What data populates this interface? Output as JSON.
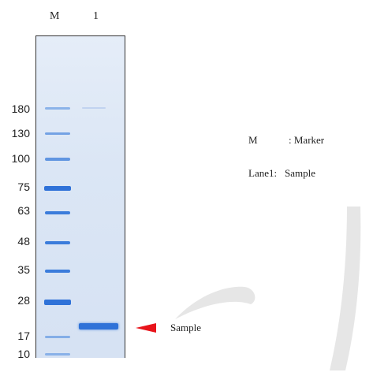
{
  "lane_headers": {
    "marker": "M",
    "lane1": "1"
  },
  "marker_weights": [
    "180",
    "130",
    "100",
    "75",
    "63",
    "48",
    "35",
    "28",
    "17",
    "10"
  ],
  "legend": {
    "marker_key": "M",
    "marker_value": ": Marker",
    "lane_key": "Lane1:",
    "lane_value": "Sample"
  },
  "annotation": {
    "label": "Sample",
    "arrow_color": "#e8141b"
  },
  "colors": {
    "band": "#2f72d8",
    "frame": "#333333",
    "watermark": "#e6e6e6"
  }
}
